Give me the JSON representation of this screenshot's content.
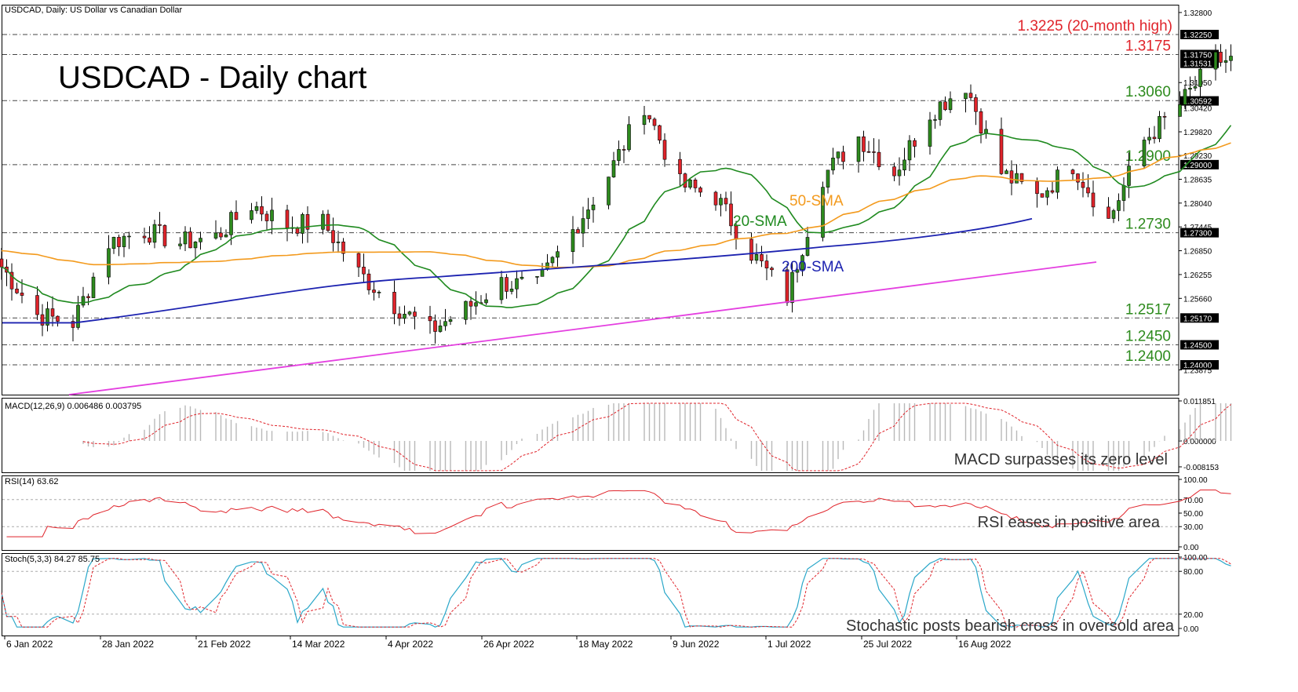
{
  "colors": {
    "bull": "#2e8b1e",
    "bear": "#e0242b",
    "sma20": "#1f8a1f",
    "sma50": "#f39a1d",
    "sma200": "#1c22b0",
    "trend": "#e43fe0",
    "level_green": "#2e8b1e",
    "level_red": "#e0242b",
    "macd_hist": "#b8b8b8",
    "signal": "#e0242b",
    "stoch_main": "#2aa7c9",
    "stoch_signal": "#e0242b"
  },
  "main": {
    "header": "USDCAD, Daily:  US Dollar vs Canadian Dollar",
    "title": "USDCAD - Daily chart",
    "price_ticks": [
      "1.32800",
      "1.32250",
      "1.31750",
      "1.31531",
      "1.31050",
      "1.30592",
      "1.30420",
      "1.29820",
      "1.29230",
      "1.29000",
      "1.28635",
      "1.28040",
      "1.27445",
      "1.27300",
      "1.26850",
      "1.26255",
      "1.25660",
      "1.25170",
      "1.24500",
      "1.24000",
      "1.23875"
    ],
    "highlighted_ticks": [
      "1.32250",
      "1.31750",
      "1.31531",
      "1.30592",
      "1.29000",
      "1.27300",
      "1.25170",
      "1.24500",
      "1.24000"
    ],
    "levels": [
      {
        "value": 1.3225,
        "label": "1.3225 (20-month high)",
        "color": "red"
      },
      {
        "value": 1.3175,
        "label": "1.3175",
        "color": "red"
      },
      {
        "value": 1.306,
        "label": "1.3060",
        "color": "green"
      },
      {
        "value": 1.29,
        "label": "1.2900",
        "color": "green"
      },
      {
        "value": 1.273,
        "label": "1.2730",
        "color": "green"
      },
      {
        "value": 1.2517,
        "label": "1.2517",
        "color": "green"
      },
      {
        "value": 1.245,
        "label": "1.2450",
        "color": "green"
      },
      {
        "value": 1.24,
        "label": "1.2400",
        "color": "green"
      }
    ],
    "sma_labels": {
      "sma20": "20-SMA",
      "sma50": "50-SMA",
      "sma200": "200-SMA"
    }
  },
  "macd": {
    "header": "MACD(12,26,9) 0.006486 0.003795",
    "ticks": [
      "0.011851",
      "0.000000",
      "-0.008153"
    ],
    "annotation": "MACD surpasses its zero level"
  },
  "rsi": {
    "header": "RSI(14) 63.62",
    "ticks": [
      "100.00",
      "70.00",
      "50.00",
      "30.00",
      "0.00"
    ],
    "annotation": "RSI eases in positive area"
  },
  "stoch": {
    "header": "Stoch(5,3,3) 84.27 85.75",
    "ticks": [
      "100.00",
      "80.00",
      "20.00",
      "0.00"
    ],
    "annotation": "Stochastic posts bearish cross in oversold area"
  },
  "x_axis": {
    "labels": [
      "6 Jan 2022",
      "28 Jan 2022",
      "21 Feb 2022",
      "14 Mar 2022",
      "4 Apr 2022",
      "26 Apr 2022",
      "18 May 2022",
      "9 Jun 2022",
      "1 Jul 2022",
      "25 Jul 2022",
      "16 Aug 2022"
    ]
  },
  "chart_data": {
    "type": "candlestick",
    "symbol": "USDCAD",
    "timeframe": "Daily",
    "ylim": [
      1.2375,
      1.3285
    ],
    "points": [
      [
        "2022-01-03",
        1.27,
        1.2645
      ],
      [
        "2022-01-10",
        1.2645,
        1.2525
      ],
      [
        "2022-01-17",
        1.2525,
        1.2505
      ],
      [
        "2022-01-24",
        1.2505,
        1.2705
      ],
      [
        "2022-01-31",
        1.2705,
        1.2735
      ],
      [
        "2022-02-07",
        1.2735,
        1.2705
      ],
      [
        "2022-02-14",
        1.2705,
        1.272
      ],
      [
        "2022-02-21",
        1.272,
        1.28
      ],
      [
        "2022-02-28",
        1.28,
        1.275
      ],
      [
        "2022-03-07",
        1.275,
        1.2755
      ],
      [
        "2022-03-14",
        1.2755,
        1.263
      ],
      [
        "2022-03-21",
        1.263,
        1.255
      ],
      [
        "2022-03-28",
        1.255,
        1.2485
      ],
      [
        "2022-04-04",
        1.2485,
        1.254
      ],
      [
        "2022-04-11",
        1.254,
        1.2605
      ],
      [
        "2022-04-18",
        1.2605,
        1.2595
      ],
      [
        "2022-04-25",
        1.2595,
        1.2735
      ],
      [
        "2022-05-02",
        1.2735,
        1.2875
      ],
      [
        "2022-05-09",
        1.2875,
        1.305
      ],
      [
        "2022-05-16",
        1.305,
        1.285
      ],
      [
        "2022-05-23",
        1.285,
        1.282
      ],
      [
        "2022-05-30",
        1.282,
        1.268
      ],
      [
        "2022-06-06",
        1.268,
        1.257
      ],
      [
        "2022-06-13",
        1.257,
        1.287
      ],
      [
        "2022-06-20",
        1.287,
        1.297
      ],
      [
        "2022-06-27",
        1.297,
        1.288
      ],
      [
        "2022-07-04",
        1.288,
        1.303
      ],
      [
        "2022-07-11",
        1.303,
        1.31
      ],
      [
        "2022-07-18",
        1.31,
        1.288
      ],
      [
        "2022-07-25",
        1.288,
        1.282
      ],
      [
        "2022-08-01",
        1.282,
        1.29
      ],
      [
        "2022-08-08",
        1.29,
        1.276
      ],
      [
        "2022-08-15",
        1.276,
        1.296
      ],
      [
        "2022-08-22",
        1.296,
        1.305
      ],
      [
        "2022-08-29",
        1.305,
        1.316
      ]
    ]
  }
}
